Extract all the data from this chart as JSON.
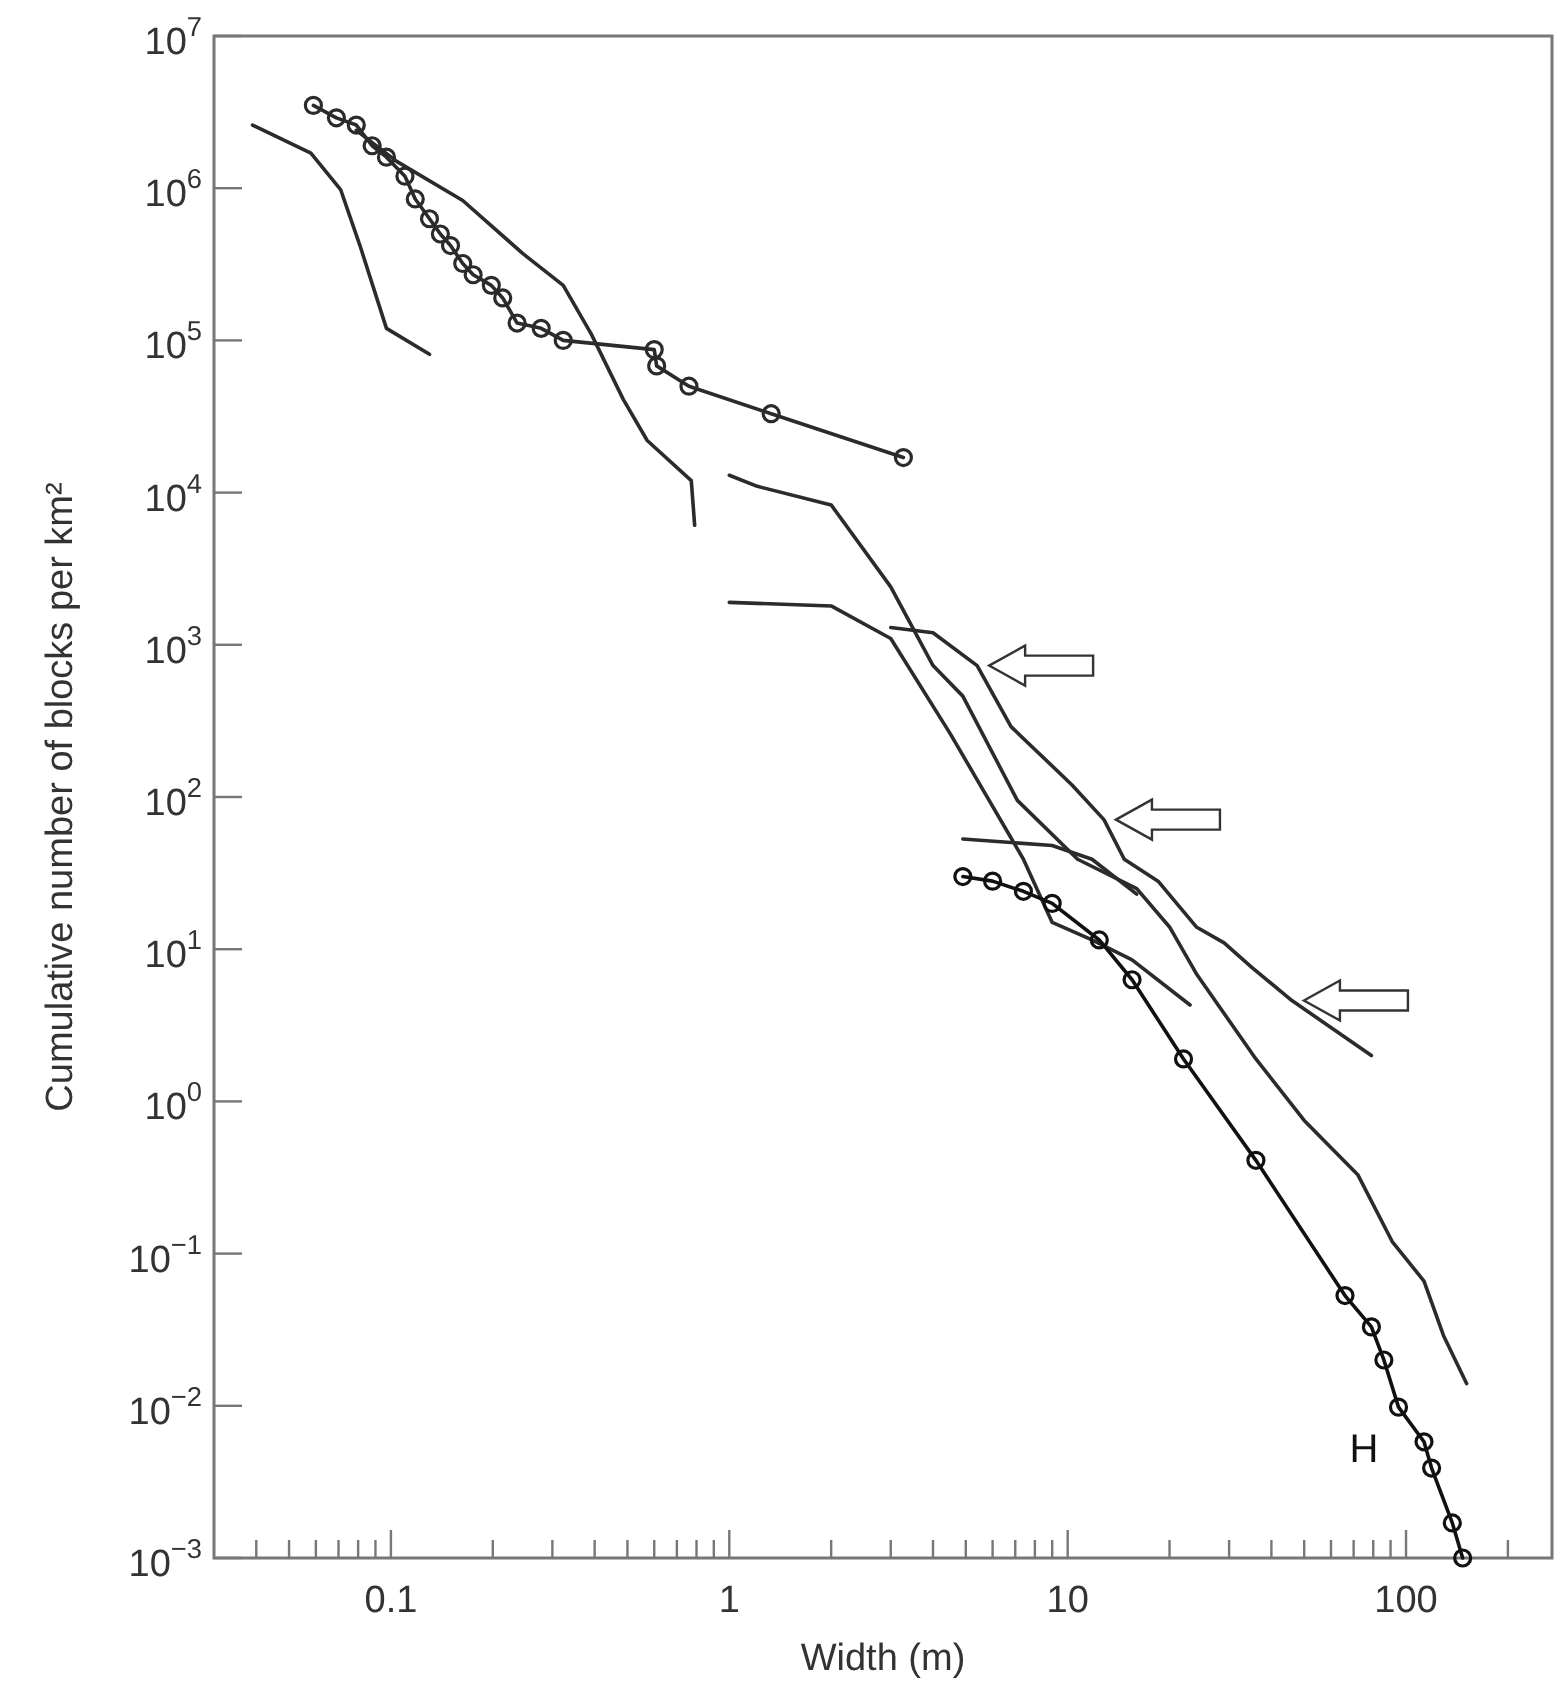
{
  "chart_data": {
    "type": "line",
    "xlabel": "Width (m)",
    "ylabel": "Cumulative number of blocks per km²",
    "log": "xy",
    "xlim": [
      0.03,
      270
    ],
    "ylim": [
      0.001,
      10000000
    ],
    "xticks": [
      {
        "value": 0.04,
        "label": null
      },
      {
        "value": 0.05,
        "label": null
      },
      {
        "value": 0.06,
        "label": null
      },
      {
        "value": 0.07,
        "label": null
      },
      {
        "value": 0.08,
        "label": null
      },
      {
        "value": 0.09,
        "label": null
      },
      0.1,
      {
        "value": 0.2,
        "label": null
      },
      {
        "value": 0.3,
        "label": null
      },
      {
        "value": 0.4,
        "label": null
      },
      {
        "value": 0.5,
        "label": null
      },
      {
        "value": 0.6,
        "label": null
      },
      {
        "value": 0.7,
        "label": null
      },
      {
        "value": 0.8,
        "label": null
      },
      {
        "value": 0.9,
        "label": null
      },
      1,
      {
        "value": 2,
        "label": null
      },
      {
        "value": 3,
        "label": null
      },
      {
        "value": 4,
        "label": null
      },
      {
        "value": 5,
        "label": null
      },
      {
        "value": 6,
        "label": null
      },
      {
        "value": 7,
        "label": null
      },
      {
        "value": 8,
        "label": null
      },
      {
        "value": 9,
        "label": null
      },
      10,
      {
        "value": 20,
        "label": null
      },
      {
        "value": 30,
        "label": null
      },
      {
        "value": 40,
        "label": null
      },
      {
        "value": 50,
        "label": null
      },
      {
        "value": 60,
        "label": null
      },
      {
        "value": 70,
        "label": null
      },
      {
        "value": 80,
        "label": null
      },
      {
        "value": 90,
        "label": null
      },
      100,
      {
        "value": 200,
        "label": null
      }
    ],
    "yticks": [
      {
        "value": 0.001,
        "label": "10$^{−3}$"
      },
      {
        "value": 0.01,
        "label": "10$^{−2}$"
      },
      {
        "value": 0.1,
        "label": "10$^{−1}$"
      },
      {
        "value": 1,
        "label": "10$^{0}$"
      },
      {
        "value": 10,
        "label": "10$^{1}$"
      },
      {
        "value": 100,
        "label": "10$^{2}$"
      },
      {
        "value": 1000,
        "label": "10$^{3}$"
      },
      {
        "value": 10000,
        "label": "10$^{4}$"
      },
      {
        "value": 100000,
        "label": "10$^{5}$"
      },
      {
        "value": 1000000,
        "label": "10$^{6}$"
      },
      {
        "value": 10000000,
        "label": "10$^{7}$"
      }
    ],
    "series": [
      {
        "color": "#2b2b2b",
        "x": [
          0.039,
          0.058,
          0.071,
          0.081,
          0.097,
          0.13
        ],
        "values": [
          2600000,
          1700000,
          980000,
          420000,
          120000,
          81000
        ]
      },
      {
        "color": "#2b2b2b",
        "marker": "circle",
        "x": [
          0.059,
          0.069,
          0.079,
          0.088,
          0.097,
          0.11,
          0.118,
          0.13,
          0.14,
          0.15,
          0.163,
          0.175,
          0.198,
          0.214,
          0.236,
          0.278,
          0.323,
          0.6,
          0.61,
          0.76,
          1.33,
          3.27
        ],
        "values": [
          3500000,
          2900000,
          2600000,
          1900000,
          1600000,
          1200000,
          850000,
          630000,
          500000,
          420000,
          320000,
          270000,
          230000,
          190000,
          130000,
          120000,
          100000,
          87000,
          68000,
          50000,
          33000,
          17000
        ]
      },
      {
        "color": "#2b2b2b",
        "x": [
          0.079,
          0.104,
          0.163,
          0.246,
          0.323,
          0.391,
          0.486,
          0.572,
          0.772,
          0.79
        ],
        "values": [
          2400000,
          1500000,
          830000,
          370000,
          230000,
          110000,
          41000,
          22000,
          12000,
          6100
        ]
      },
      {
        "color": "#2b2b2b",
        "x": [
          1,
          1.21,
          2,
          3,
          4,
          4.9,
          7.1,
          10.7,
          16,
          20,
          24,
          36,
          50,
          72,
          91,
          113,
          129,
          151
        ],
        "values": [
          13000,
          11000,
          8300,
          2400,
          730,
          460,
          95,
          39,
          25,
          14,
          6.9,
          1.9,
          0.75,
          0.33,
          0.12,
          0.066,
          0.029,
          0.014
        ]
      },
      {
        "color": "#2b2b2b",
        "x": [
          3,
          4,
          5.4,
          6.8,
          10.3,
          12.8,
          14.7,
          18.5,
          24,
          29,
          35,
          46,
          79
        ],
        "values": [
          1300,
          1200,
          730,
          290,
          120,
          71,
          39,
          28,
          14,
          11,
          7.6,
          4.6,
          2
        ]
      },
      {
        "color": "#2b2b2b",
        "x": [
          1,
          2,
          3,
          4.5,
          7.4,
          9,
          11.8,
          15.5,
          23
        ],
        "values": [
          1900,
          1800,
          1100,
          260,
          39,
          15,
          11.5,
          8.5,
          4.3
        ]
      },
      {
        "color": "#2b2b2b",
        "x": [
          4.9,
          9,
          11.8,
          16
        ],
        "values": [
          53,
          48,
          39,
          23
        ]
      },
      {
        "name": "H",
        "color": "#111111",
        "marker": "circle",
        "x": [
          4.9,
          6,
          7.4,
          9,
          12.4,
          15.5,
          22,
          36,
          66,
          79,
          86,
          95,
          113,
          119,
          137,
          147
        ],
        "values": [
          30,
          28,
          24,
          20,
          11.5,
          6.3,
          1.9,
          0.41,
          0.053,
          0.033,
          0.02,
          0.0098,
          0.0058,
          0.0039,
          0.0017,
          0.001
        ]
      }
    ]
  }
}
